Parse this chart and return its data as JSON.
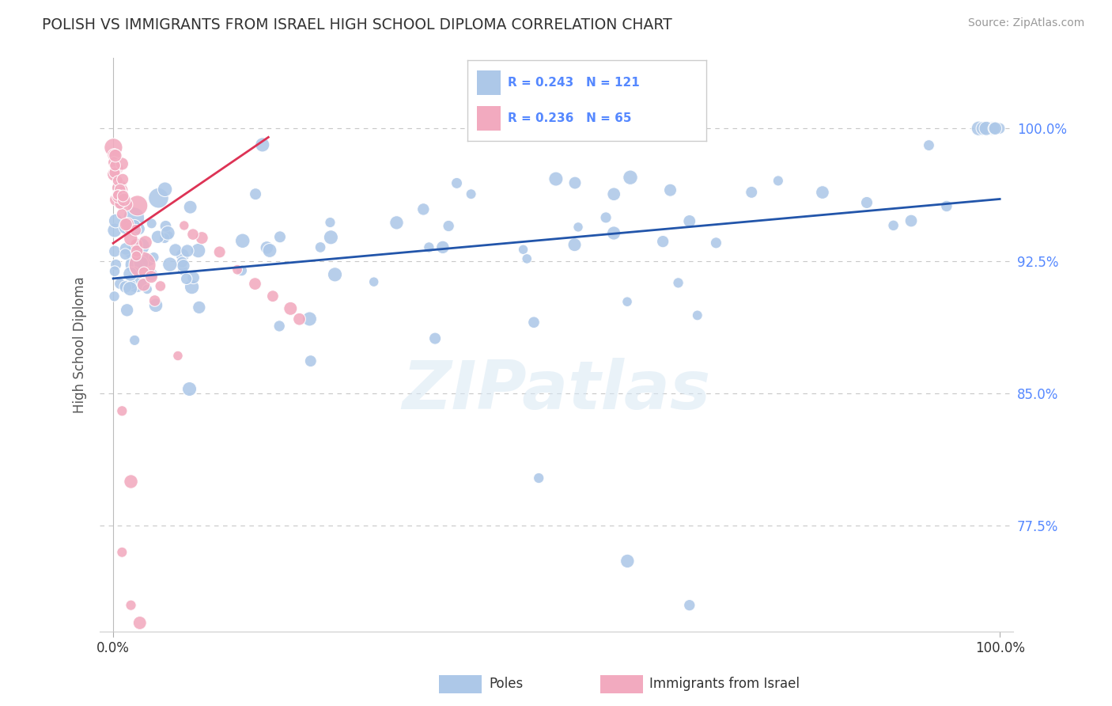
{
  "title": "POLISH VS IMMIGRANTS FROM ISRAEL HIGH SCHOOL DIPLOMA CORRELATION CHART",
  "source": "Source: ZipAtlas.com",
  "ylabel": "High School Diploma",
  "watermark": "ZIPatlas",
  "ytick_labels": [
    "77.5%",
    "85.0%",
    "92.5%",
    "100.0%"
  ],
  "ytick_vals": [
    0.775,
    0.85,
    0.925,
    1.0
  ],
  "legend_blue_r": "R = 0.243",
  "legend_blue_n": "N = 121",
  "legend_pink_r": "R = 0.236",
  "legend_pink_n": "N = 65",
  "blue_color": "#adc8e8",
  "pink_color": "#f2aabf",
  "blue_line_color": "#2255aa",
  "pink_line_color": "#dd3355",
  "grid_color": "#c8c8c8",
  "background_color": "#ffffff",
  "title_color": "#333333",
  "source_color": "#999999",
  "tick_color_right": "#5588ff",
  "tick_color_bottom": "#333333",
  "xlim": [
    -0.015,
    1.015
  ],
  "ylim": [
    0.715,
    1.04
  ],
  "blue_trend_x0": 0.0,
  "blue_trend_y0": 0.915,
  "blue_trend_x1": 1.0,
  "blue_trend_y1": 0.96,
  "pink_trend_x0": 0.0,
  "pink_trend_y0": 0.935,
  "pink_trend_x1": 0.175,
  "pink_trend_y1": 0.995
}
